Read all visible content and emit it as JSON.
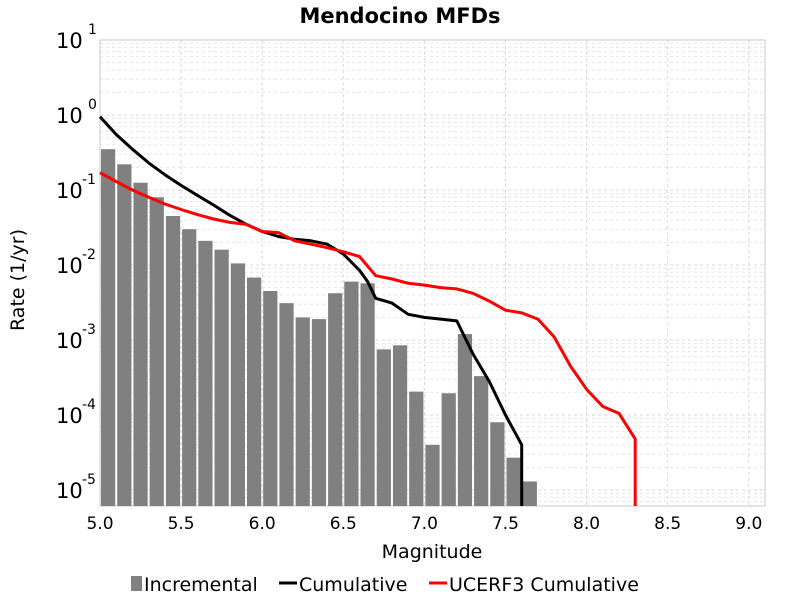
{
  "chart_data": {
    "type": "bar",
    "title": "Mendocino MFDs",
    "xlabel": "Magnitude",
    "ylabel": "Rate (1/yr)",
    "xlim": [
      5.0,
      9.1
    ],
    "ylim": [
      5.5e-06,
      10
    ],
    "y_scale": "log",
    "grid": true,
    "legend_position": "bottom",
    "x_ticks": [
      "5.0",
      "5.5",
      "6.0",
      "6.5",
      "7.0",
      "7.5",
      "8.0",
      "8.5",
      "9.0"
    ],
    "y_ticks": [
      {
        "base": "10",
        "exp": "-5",
        "value": 1e-05
      },
      {
        "base": "10",
        "exp": "-4",
        "value": 0.0001
      },
      {
        "base": "10",
        "exp": "-3",
        "value": 0.001
      },
      {
        "base": "10",
        "exp": "-2",
        "value": 0.01
      },
      {
        "base": "10",
        "exp": "-1",
        "value": 0.1
      },
      {
        "base": "10",
        "exp": "0",
        "value": 1
      },
      {
        "base": "10",
        "exp": "1",
        "value": 10
      }
    ],
    "series": [
      {
        "name": "Incremental",
        "kind": "bar",
        "color": "#808080",
        "bin_width": 0.1,
        "x": [
          5.0,
          5.1,
          5.2,
          5.3,
          5.4,
          5.5,
          5.6,
          5.7,
          5.8,
          5.9,
          6.0,
          6.1,
          6.2,
          6.3,
          6.4,
          6.5,
          6.6,
          6.7,
          6.8,
          6.9,
          7.0,
          7.1,
          7.2,
          7.3,
          7.4,
          7.5,
          7.6
        ],
        "values": [
          0.35,
          0.22,
          0.125,
          0.08,
          0.045,
          0.03,
          0.021,
          0.016,
          0.0105,
          0.0068,
          0.0045,
          0.0031,
          0.002,
          0.0019,
          0.0042,
          0.006,
          0.0057,
          0.00075,
          0.00085,
          0.000205,
          4e-05,
          0.000195,
          0.0012,
          0.00033,
          8e-05,
          2.7e-05,
          1.3e-05
        ]
      },
      {
        "name": "Cumulative",
        "kind": "line",
        "color": "#000000",
        "x": [
          5.0,
          5.1,
          5.2,
          5.3,
          5.4,
          5.5,
          5.6,
          5.7,
          5.8,
          5.9,
          6.0,
          6.1,
          6.2,
          6.3,
          6.4,
          6.5,
          6.6,
          6.65,
          6.7,
          6.8,
          6.9,
          7.0,
          7.1,
          7.2,
          7.3,
          7.4,
          7.5,
          7.6,
          7.6
        ],
        "values": [
          0.95,
          0.55,
          0.35,
          0.23,
          0.16,
          0.115,
          0.085,
          0.063,
          0.046,
          0.035,
          0.028,
          0.024,
          0.022,
          0.021,
          0.019,
          0.014,
          0.0085,
          0.006,
          0.0036,
          0.0031,
          0.0022,
          0.002,
          0.0019,
          0.0018,
          0.00065,
          0.00028,
          0.0001,
          4e-05,
          5.5e-06
        ]
      },
      {
        "name": "UCERF3 Cumulative",
        "kind": "line",
        "color": "#ff0000",
        "x": [
          5.0,
          5.1,
          5.2,
          5.3,
          5.4,
          5.5,
          5.6,
          5.7,
          5.8,
          5.9,
          6.0,
          6.1,
          6.2,
          6.3,
          6.4,
          6.5,
          6.6,
          6.7,
          6.8,
          6.9,
          7.0,
          7.1,
          7.2,
          7.3,
          7.4,
          7.5,
          7.6,
          7.7,
          7.8,
          7.9,
          8.0,
          8.1,
          8.2,
          8.3,
          8.3
        ],
        "values": [
          0.17,
          0.13,
          0.1,
          0.08,
          0.065,
          0.055,
          0.047,
          0.041,
          0.037,
          0.035,
          0.028,
          0.027,
          0.021,
          0.019,
          0.017,
          0.015,
          0.013,
          0.0072,
          0.0065,
          0.0057,
          0.0054,
          0.005,
          0.0048,
          0.0042,
          0.0033,
          0.0025,
          0.0023,
          0.0019,
          0.0011,
          0.00045,
          0.00022,
          0.00013,
          0.000105,
          4.8e-05,
          5.5e-06
        ]
      }
    ]
  }
}
